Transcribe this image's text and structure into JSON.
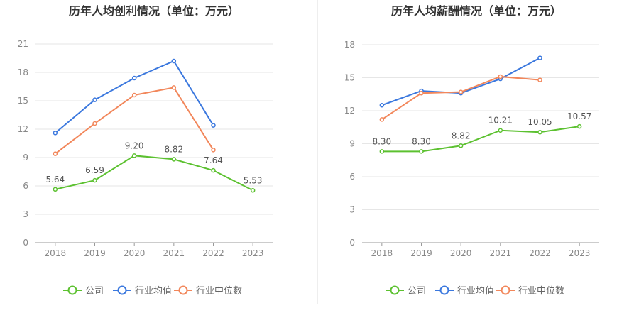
{
  "colors": {
    "company": "#5cc130",
    "industry_avg": "#3b78de",
    "industry_median": "#f2875b",
    "grid": "#e6e6e6",
    "axis": "#999999",
    "tick_text": "#888888",
    "title_text": "#333333",
    "label_text": "#555555"
  },
  "legend_labels": [
    "公司",
    "行业均值",
    "行业中位数"
  ],
  "chart_data": [
    {
      "type": "line",
      "title": "历年人均创利情况（单位：万元）",
      "categories": [
        "2018",
        "2019",
        "2020",
        "2021",
        "2022",
        "2023"
      ],
      "ylim": [
        0,
        21
      ],
      "yticks": [
        "0",
        "3",
        "6",
        "9",
        "12",
        "15",
        "18",
        "21"
      ],
      "grid": true,
      "legend_position": "bottom-center",
      "series": [
        {
          "name": "公司",
          "values": [
            5.64,
            6.59,
            9.2,
            8.82,
            7.64,
            5.53
          ],
          "labels": [
            "5.64",
            "6.59",
            "9.20",
            "8.82",
            "7.64",
            "5.53"
          ]
        },
        {
          "name": "行业均值",
          "values": [
            11.6,
            15.1,
            17.4,
            19.2,
            12.4,
            null
          ]
        },
        {
          "name": "行业中位数",
          "values": [
            9.4,
            12.6,
            15.6,
            16.4,
            9.8,
            null
          ]
        }
      ]
    },
    {
      "type": "line",
      "title": "历年人均薪酬情况（单位：万元）",
      "categories": [
        "2018",
        "2019",
        "2020",
        "2021",
        "2022",
        "2023"
      ],
      "ylim": [
        0,
        18
      ],
      "yticks": [
        "0",
        "3",
        "6",
        "9",
        "12",
        "15",
        "18"
      ],
      "grid": true,
      "legend_position": "bottom-center",
      "series": [
        {
          "name": "公司",
          "values": [
            8.3,
            8.3,
            8.82,
            10.21,
            10.05,
            10.57
          ],
          "labels": [
            "8.30",
            "8.30",
            "8.82",
            "10.21",
            "10.05",
            "10.57"
          ]
        },
        {
          "name": "行业均值",
          "values": [
            12.5,
            13.8,
            13.6,
            14.9,
            16.8,
            null
          ]
        },
        {
          "name": "行业中位数",
          "values": [
            11.2,
            13.6,
            13.7,
            15.1,
            14.8,
            null
          ]
        }
      ]
    }
  ]
}
